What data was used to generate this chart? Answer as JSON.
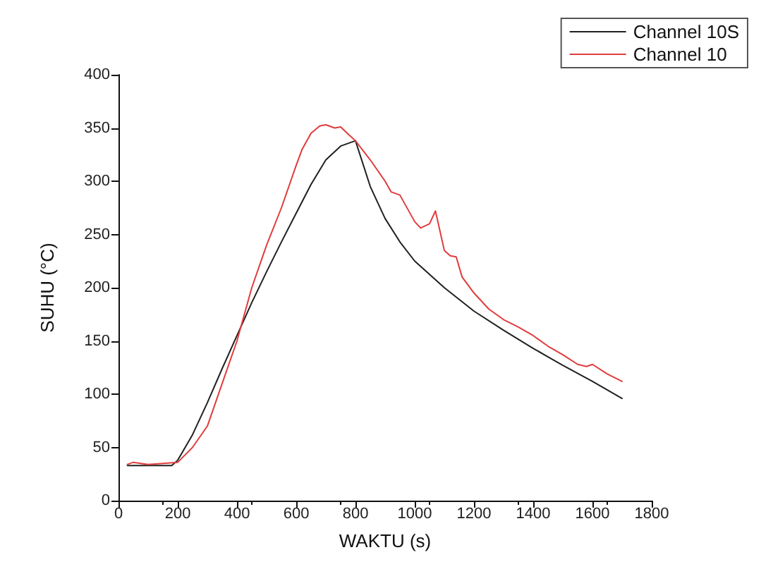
{
  "chart_data": {
    "type": "line",
    "xlabel": "WAKTU (s)",
    "ylabel": "SUHU (°C)",
    "xlim": [
      0,
      1800
    ],
    "xticks": [
      0,
      200,
      400,
      600,
      800,
      1000,
      1200,
      1400,
      1600,
      1800
    ],
    "ylim": [
      0,
      400
    ],
    "yticks": [
      0,
      50,
      100,
      150,
      200,
      250,
      300,
      350,
      400
    ],
    "grid": false,
    "legend": "top right",
    "marker": "none",
    "line_style": "solid",
    "series": [
      {
        "name": "Channel 10S",
        "color": "#202020",
        "x": [
          30,
          100,
          180,
          200,
          250,
          300,
          350,
          400,
          450,
          500,
          550,
          600,
          650,
          700,
          750,
          800,
          850,
          900,
          950,
          1000,
          1100,
          1200,
          1300,
          1400,
          1500,
          1600,
          1700
        ],
        "values": [
          33,
          33,
          33,
          38,
          62,
          92,
          124,
          155,
          186,
          215,
          243,
          270,
          297,
          320,
          333,
          338,
          295,
          265,
          243,
          225,
          200,
          178,
          160,
          143,
          127,
          112,
          96
        ]
      },
      {
        "name": "Channel 10",
        "color": "#e03c3c",
        "x": [
          30,
          50,
          100,
          150,
          200,
          250,
          300,
          350,
          400,
          450,
          500,
          550,
          600,
          620,
          650,
          680,
          700,
          730,
          750,
          780,
          800,
          850,
          900,
          920,
          950,
          1000,
          1020,
          1050,
          1070,
          1100,
          1120,
          1140,
          1160,
          1200,
          1250,
          1300,
          1350,
          1400,
          1450,
          1500,
          1550,
          1580,
          1600,
          1650,
          1700
        ],
        "values": [
          34,
          36,
          34,
          35,
          36,
          50,
          70,
          110,
          150,
          200,
          240,
          275,
          315,
          330,
          345,
          352,
          353,
          350,
          351,
          343,
          338,
          320,
          300,
          290,
          287,
          262,
          256,
          260,
          272,
          235,
          230,
          229,
          210,
          195,
          180,
          170,
          163,
          155,
          145,
          137,
          128,
          126,
          128,
          119,
          112
        ]
      }
    ]
  }
}
